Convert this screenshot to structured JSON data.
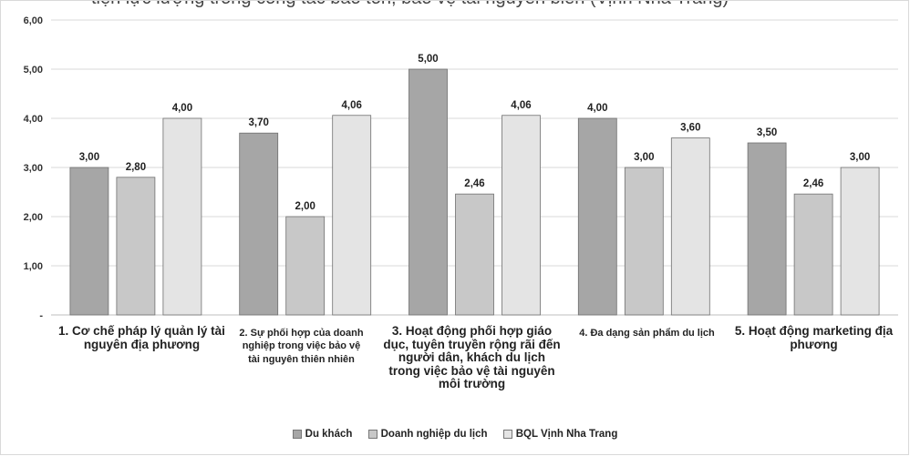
{
  "cut_title": "tiện lực lượng trong công tác bảo tồn, bảo vệ tài nguyên biển (Vịnh Nha Trang)",
  "chart_data": {
    "type": "bar",
    "categories": [
      "1. Cơ chế pháp lý quản lý tài nguyên địa phương",
      "2. Sự phối hợp của doanh nghiệp trong việc bảo vệ tài nguyên thiên nhiên",
      "3. Hoạt động phối hợp giáo dục, tuyên truyền rộng rãi đến người dân, khách du lịch trong việc bảo vệ tài nguyên môi trường",
      "4. Đa dạng sản phẩm du lịch",
      "5. Hoạt động marketing địa phương"
    ],
    "series": [
      {
        "name": "Du khách",
        "values": [
          3.0,
          3.7,
          5.0,
          4.0,
          3.5
        ],
        "color": "#a6a6a6"
      },
      {
        "name": "Doanh nghiệp du lịch",
        "values": [
          2.8,
          2.0,
          2.46,
          3.0,
          2.46
        ],
        "color": "#c8c8c8"
      },
      {
        "name": "BQL Vịnh Nha Trang",
        "values": [
          4.0,
          4.06,
          4.06,
          3.6,
          3.0
        ],
        "color": "#e4e4e4"
      }
    ],
    "data_labels": [
      [
        "3,00",
        "3,70",
        "5,00",
        "4,00",
        "3,50"
      ],
      [
        "2,80",
        "2,00",
        "2,46",
        "3,00",
        "2,46"
      ],
      [
        "4,00",
        "4,06",
        "4,06",
        "3,60",
        "3,00"
      ]
    ],
    "y_ticks": [
      "-",
      "1,00",
      "2,00",
      "3,00",
      "4,00",
      "5,00",
      "6,00"
    ],
    "ylim": [
      0,
      6
    ],
    "grid": true,
    "legend_position": "bottom",
    "title": "",
    "xlabel": "",
    "ylabel": ""
  }
}
